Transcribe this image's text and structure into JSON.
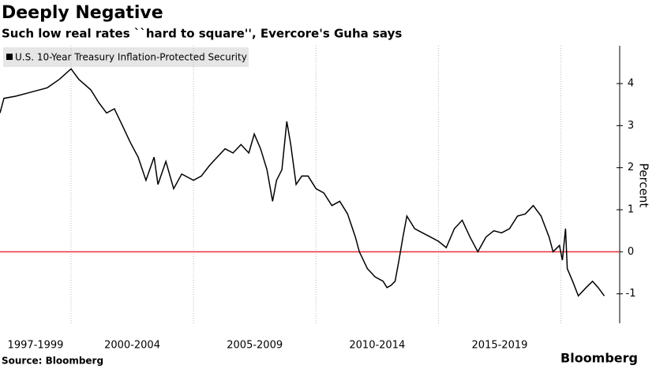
{
  "chart_data": {
    "type": "line",
    "title": "Deeply Negative",
    "subtitle": "Such low real rates ``hard to square'', Evercore's Guha says",
    "source": "Source: Bloomberg",
    "brand": "Bloomberg",
    "y_label": "Percent",
    "categories": [
      "1997-1999",
      "2000-2004",
      "2005-2009",
      "2010-2014",
      "2015-2019"
    ],
    "xlim": [
      1997.1,
      2022.4
    ],
    "xticks": [
      2000,
      2005,
      2010,
      2015,
      2020
    ],
    "ylim": [
      -1.7,
      4.9
    ],
    "yticks": [
      -1,
      0,
      1,
      2,
      3,
      4
    ],
    "grid": true,
    "legend": "top-left",
    "reference_line": {
      "value": 0,
      "color": "#e8303a"
    },
    "series": [
      {
        "name": "U.S. 10-Year Treasury Inflation-Protected Security",
        "color": "#000000",
        "x": [
          1997.1,
          1997.26,
          1997.74,
          1998.39,
          1999.03,
          1999.52,
          2000.0,
          2000.32,
          2000.81,
          2001.13,
          2001.45,
          2001.77,
          2002.1,
          2002.42,
          2002.74,
          2003.06,
          2003.39,
          2003.55,
          2003.87,
          2004.19,
          2004.52,
          2005.0,
          2005.32,
          2005.65,
          2005.97,
          2006.29,
          2006.61,
          2006.94,
          2007.26,
          2007.48,
          2007.74,
          2008.0,
          2008.23,
          2008.39,
          2008.61,
          2008.81,
          2008.97,
          2009.19,
          2009.42,
          2009.68,
          2010.0,
          2010.32,
          2010.65,
          2010.97,
          2011.29,
          2011.61,
          2011.77,
          2012.1,
          2012.42,
          2012.74,
          2012.9,
          2013.06,
          2013.23,
          2013.39,
          2013.55,
          2013.71,
          2014.03,
          2014.35,
          2014.68,
          2015.0,
          2015.32,
          2015.65,
          2015.97,
          2016.29,
          2016.61,
          2016.94,
          2017.26,
          2017.58,
          2017.9,
          2018.23,
          2018.55,
          2018.87,
          2019.19,
          2019.52,
          2019.68,
          2019.94,
          2020.06,
          2020.19,
          2020.26,
          2020.48,
          2020.71,
          2021.03,
          2021.29,
          2021.52,
          2021.77
        ],
        "values": [
          3.3,
          3.65,
          3.7,
          3.8,
          3.9,
          4.1,
          4.35,
          4.1,
          3.85,
          3.55,
          3.3,
          3.4,
          3.0,
          2.6,
          2.25,
          1.7,
          2.25,
          1.6,
          2.15,
          1.5,
          1.85,
          1.7,
          1.8,
          2.05,
          2.25,
          2.45,
          2.35,
          2.55,
          2.35,
          2.8,
          2.45,
          1.95,
          1.2,
          1.7,
          1.95,
          3.1,
          2.55,
          1.6,
          1.8,
          1.8,
          1.5,
          1.4,
          1.1,
          1.2,
          0.9,
          0.35,
          0,
          -0.4,
          -0.6,
          -0.7,
          -0.85,
          -0.8,
          -0.7,
          -0.2,
          0.35,
          0.85,
          0.55,
          0.45,
          0.35,
          0.25,
          0.1,
          0.55,
          0.75,
          0.35,
          0,
          0.35,
          0.5,
          0.45,
          0.55,
          0.85,
          0.9,
          1.1,
          0.85,
          0.35,
          0,
          0.15,
          -0.2,
          0.55,
          -0.4,
          -0.7,
          -1.05,
          -0.85,
          -0.7,
          -0.85,
          -1.05
        ]
      }
    ]
  }
}
